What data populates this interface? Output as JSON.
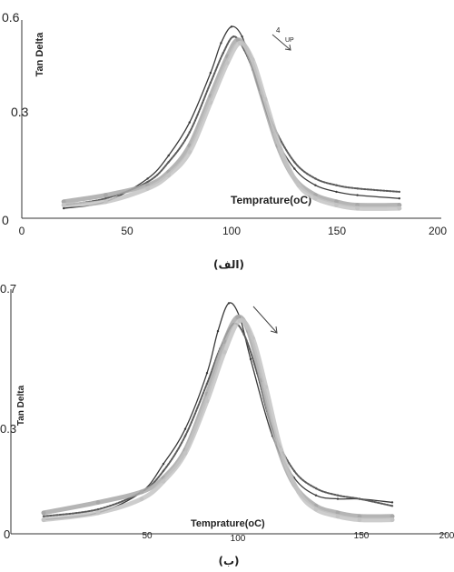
{
  "colors": {
    "series_dark": "#3a3a3a",
    "series_mid": "#6f6f6f",
    "series_light": "#a8a8a8",
    "series_faint": "#c4c4c4",
    "axis": "#333333"
  },
  "chart_data": [
    {
      "type": "line",
      "caption": "(الف)",
      "ylabel": "Tan Delta",
      "xlabel": "Temprature(oC)",
      "xlim": [
        0,
        200
      ],
      "ylim": [
        0,
        0.6
      ],
      "xticks": [
        "0",
        "50",
        "100",
        "150",
        "200"
      ],
      "yticks": [
        "0",
        "0.3",
        "0.6"
      ],
      "annotation": {
        "number": "4",
        "text": "UP"
      },
      "series": [
        {
          "color": "#3a3a3a",
          "x": [
            20,
            40,
            60,
            70,
            80,
            90,
            95,
            100,
            105,
            110,
            120,
            130,
            140,
            150,
            160,
            180
          ],
          "values": [
            0.03,
            0.05,
            0.12,
            0.19,
            0.29,
            0.44,
            0.53,
            0.58,
            0.55,
            0.45,
            0.26,
            0.15,
            0.1,
            0.08,
            0.07,
            0.06
          ]
        },
        {
          "color": "#5a5a5a",
          "x": [
            20,
            40,
            60,
            70,
            80,
            90,
            96,
            101,
            106,
            112,
            120,
            130,
            140,
            150,
            160,
            180
          ],
          "values": [
            0.04,
            0.06,
            0.11,
            0.17,
            0.26,
            0.41,
            0.5,
            0.55,
            0.51,
            0.42,
            0.28,
            0.17,
            0.12,
            0.1,
            0.09,
            0.08
          ]
        },
        {
          "color": "#a8a8a8",
          "x": [
            20,
            40,
            60,
            70,
            80,
            90,
            98,
            103,
            108,
            114,
            122,
            130,
            140,
            150,
            160,
            180
          ],
          "values": [
            0.05,
            0.07,
            0.1,
            0.14,
            0.22,
            0.37,
            0.49,
            0.54,
            0.5,
            0.38,
            0.22,
            0.12,
            0.07,
            0.05,
            0.04,
            0.04
          ]
        },
        {
          "color": "#c4c4c4",
          "x": [
            20,
            40,
            60,
            70,
            80,
            90,
            98,
            104,
            110,
            116,
            124,
            132,
            140,
            150,
            160,
            180
          ],
          "values": [
            0.04,
            0.05,
            0.09,
            0.13,
            0.2,
            0.35,
            0.47,
            0.53,
            0.48,
            0.36,
            0.2,
            0.1,
            0.06,
            0.04,
            0.03,
            0.03
          ]
        }
      ]
    },
    {
      "type": "line",
      "caption": "(ب)",
      "ylabel": "Tan Delta",
      "xlabel": "Temprature(oC)",
      "xlim": [
        0,
        200
      ],
      "ylim": [
        0,
        0.7
      ],
      "xticks": [
        "50",
        "100",
        "150",
        "200"
      ],
      "yticks": [
        "0",
        "0.3",
        "0.7"
      ],
      "series": [
        {
          "color": "#3a3a3a",
          "x": [
            15,
            40,
            60,
            70,
            80,
            90,
            95,
            100,
            105,
            110,
            120,
            130,
            140,
            150,
            160,
            175
          ],
          "values": [
            0.04,
            0.06,
            0.12,
            0.2,
            0.3,
            0.46,
            0.58,
            0.66,
            0.62,
            0.5,
            0.28,
            0.16,
            0.11,
            0.1,
            0.1,
            0.09
          ]
        },
        {
          "color": "#5a5a5a",
          "x": [
            15,
            40,
            60,
            70,
            80,
            90,
            96,
            102,
            107,
            113,
            120,
            130,
            140,
            150,
            160,
            175
          ],
          "values": [
            0.05,
            0.07,
            0.12,
            0.18,
            0.28,
            0.43,
            0.53,
            0.6,
            0.57,
            0.46,
            0.3,
            0.18,
            0.13,
            0.11,
            0.1,
            0.08
          ]
        },
        {
          "color": "#a8a8a8",
          "x": [
            15,
            40,
            60,
            70,
            80,
            90,
            98,
            104,
            109,
            115,
            122,
            130,
            140,
            150,
            160,
            175
          ],
          "values": [
            0.06,
            0.09,
            0.12,
            0.16,
            0.24,
            0.4,
            0.55,
            0.62,
            0.58,
            0.44,
            0.26,
            0.14,
            0.08,
            0.06,
            0.05,
            0.05
          ]
        },
        {
          "color": "#c4c4c4",
          "x": [
            15,
            40,
            60,
            70,
            80,
            90,
            98,
            105,
            111,
            117,
            124,
            132,
            140,
            150,
            160,
            175
          ],
          "values": [
            0.04,
            0.06,
            0.1,
            0.15,
            0.23,
            0.38,
            0.52,
            0.61,
            0.56,
            0.42,
            0.24,
            0.12,
            0.07,
            0.05,
            0.04,
            0.04
          ]
        }
      ]
    }
  ]
}
